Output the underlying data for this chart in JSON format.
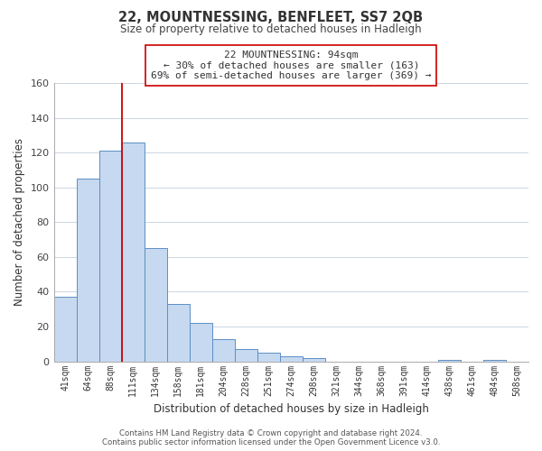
{
  "title": "22, MOUNTNESSING, BENFLEET, SS7 2QB",
  "subtitle": "Size of property relative to detached houses in Hadleigh",
  "xlabel": "Distribution of detached houses by size in Hadleigh",
  "ylabel": "Number of detached properties",
  "bar_labels": [
    "41sqm",
    "64sqm",
    "88sqm",
    "111sqm",
    "134sqm",
    "158sqm",
    "181sqm",
    "204sqm",
    "228sqm",
    "251sqm",
    "274sqm",
    "298sqm",
    "321sqm",
    "344sqm",
    "368sqm",
    "391sqm",
    "414sqm",
    "438sqm",
    "461sqm",
    "484sqm",
    "508sqm"
  ],
  "bar_values": [
    37,
    105,
    121,
    126,
    65,
    33,
    22,
    13,
    7,
    5,
    3,
    2,
    0,
    0,
    0,
    0,
    0,
    1,
    0,
    1,
    0
  ],
  "bar_color": "#c6d9f0",
  "bar_edge_color": "#5b8fc5",
  "ylim": [
    0,
    160
  ],
  "yticks": [
    0,
    20,
    40,
    60,
    80,
    100,
    120,
    140,
    160
  ],
  "subject_line_index": 2,
  "subject_line_color": "#cc0000",
  "annotation_title": "22 MOUNTNESSING: 94sqm",
  "annotation_line1": "← 30% of detached houses are smaller (163)",
  "annotation_line2": "69% of semi-detached houses are larger (369) →",
  "annotation_box_color": "#ffffff",
  "annotation_box_edge": "#cc0000",
  "footer_line1": "Contains HM Land Registry data © Crown copyright and database right 2024.",
  "footer_line2": "Contains public sector information licensed under the Open Government Licence v3.0.",
  "background_color": "#ffffff",
  "grid_color": "#ccd5e0",
  "figsize": [
    6.0,
    5.0
  ],
  "dpi": 100
}
